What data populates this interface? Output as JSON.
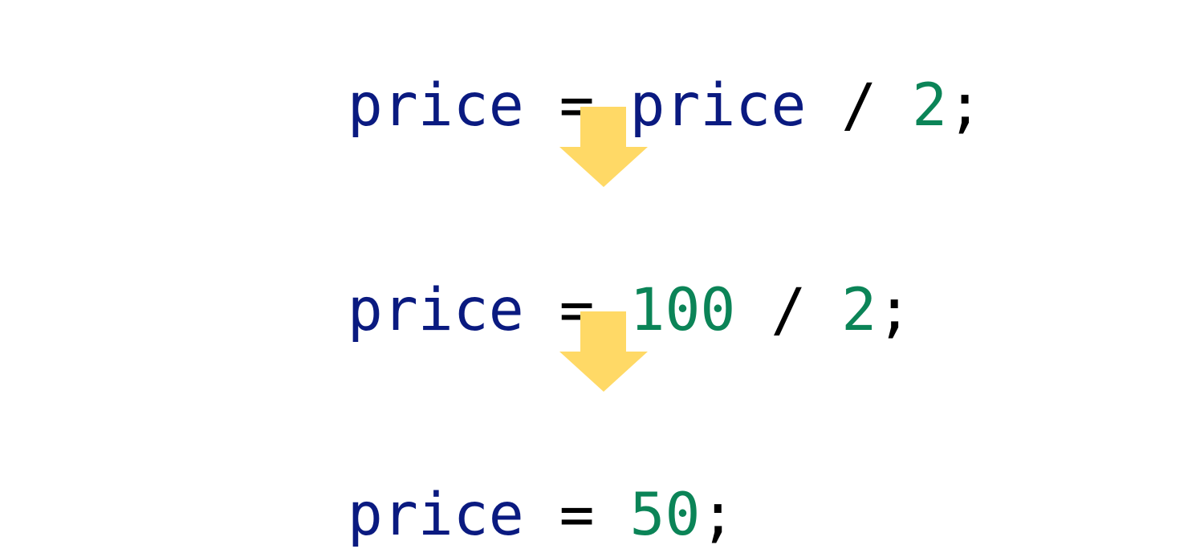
{
  "colors": {
    "identifier": "#0a1a80",
    "number": "#0b8457",
    "operator": "#000000",
    "arrow": "#FFD966"
  },
  "steps": [
    {
      "tokens": [
        {
          "text": "price",
          "kind": "id"
        },
        {
          "text": " = ",
          "kind": "op"
        },
        {
          "text": "price",
          "kind": "id"
        },
        {
          "text": " / ",
          "kind": "op"
        },
        {
          "text": "2",
          "kind": "num"
        },
        {
          "text": ";",
          "kind": "op"
        }
      ]
    },
    {
      "tokens": [
        {
          "text": "price",
          "kind": "id"
        },
        {
          "text": " = ",
          "kind": "op"
        },
        {
          "text": "100",
          "kind": "num"
        },
        {
          "text": " / ",
          "kind": "op"
        },
        {
          "text": "2",
          "kind": "num"
        },
        {
          "text": ";",
          "kind": "op"
        }
      ]
    },
    {
      "tokens": [
        {
          "text": "price",
          "kind": "id"
        },
        {
          "text": " = ",
          "kind": "op"
        },
        {
          "text": "50",
          "kind": "num"
        },
        {
          "text": ";",
          "kind": "op"
        }
      ]
    }
  ],
  "arrows": [
    {
      "icon": "arrow-down-icon"
    },
    {
      "icon": "arrow-down-icon"
    }
  ]
}
